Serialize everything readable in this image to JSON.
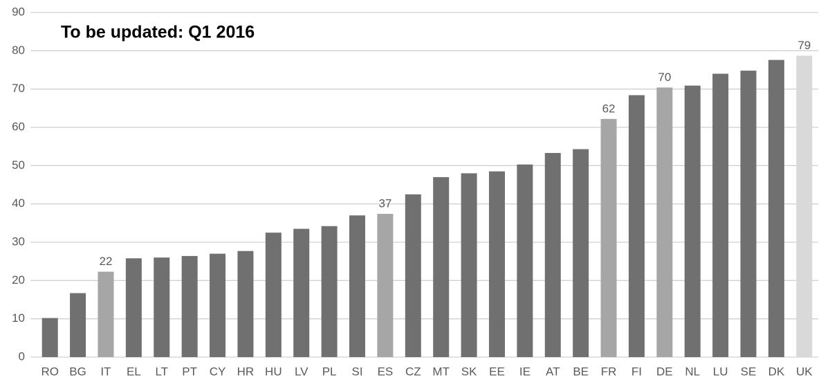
{
  "chart_data": {
    "type": "bar",
    "annotation": "To be updated: Q1 2016",
    "categories": [
      "RO",
      "BG",
      "IT",
      "EL",
      "LT",
      "PT",
      "CY",
      "HR",
      "HU",
      "LV",
      "PL",
      "SI",
      "ES",
      "CZ",
      "MT",
      "SK",
      "EE",
      "IE",
      "AT",
      "BE",
      "FR",
      "FI",
      "DE",
      "NL",
      "LU",
      "SE",
      "DK",
      "UK"
    ],
    "values": [
      10.2,
      16.7,
      22.3,
      25.8,
      26,
      26.4,
      27,
      27.7,
      32.5,
      33.5,
      34.2,
      37,
      37.4,
      42.5,
      47,
      48,
      48.5,
      50.3,
      53.3,
      54.3,
      62.2,
      68.4,
      70.4,
      70.9,
      74,
      74.8,
      77.6,
      78.7
    ],
    "value_labels": [
      null,
      null,
      "22",
      null,
      null,
      null,
      null,
      null,
      null,
      null,
      null,
      null,
      "37",
      null,
      null,
      null,
      null,
      null,
      null,
      null,
      "62",
      null,
      "70",
      null,
      null,
      null,
      null,
      "79"
    ],
    "colors": [
      "#707070",
      "#707070",
      "#a6a6a6",
      "#707070",
      "#707070",
      "#707070",
      "#707070",
      "#707070",
      "#707070",
      "#707070",
      "#707070",
      "#707070",
      "#a6a6a6",
      "#707070",
      "#707070",
      "#707070",
      "#707070",
      "#707070",
      "#707070",
      "#707070",
      "#a6a6a6",
      "#707070",
      "#a6a6a6",
      "#707070",
      "#707070",
      "#707070",
      "#707070",
      "#d9d9d9"
    ],
    "ylim": [
      0,
      90
    ],
    "yticks": [
      0,
      10,
      20,
      30,
      40,
      50,
      60,
      70,
      80,
      90
    ],
    "grid": true
  }
}
